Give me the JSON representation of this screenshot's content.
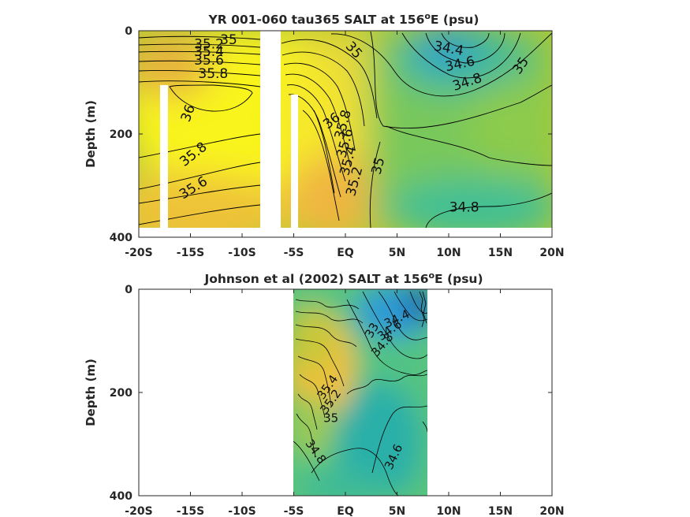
{
  "chart_data": [
    {
      "type": "heatmap",
      "title": "YR 001-060 tau365 SALT at 156",
      "title_sup": "o",
      "title_end": "E (psu)",
      "ylabel": "Depth (m)",
      "xlim": [
        -20,
        20
      ],
      "ylim": [
        0,
        400
      ],
      "y_reversed": true,
      "xtick_values": [
        -20,
        -15,
        -10,
        -5,
        0,
        5,
        10,
        15,
        20
      ],
      "xtick_labels": [
        "-20S",
        "-15S",
        "-10S",
        "-5S",
        "EQ",
        "5N",
        "10N",
        "15N",
        "20N"
      ],
      "ytick_values": [
        0,
        200,
        400
      ],
      "ytick_labels": [
        "0",
        "200",
        "400"
      ],
      "data_extent": {
        "x": [
          -20,
          20
        ],
        "depth": [
          0,
          380
        ]
      },
      "masked_columns": [
        {
          "x": [
            -17.8,
            -17.1
          ],
          "depth": [
            105,
            400
          ]
        },
        {
          "x": [
            -8.1,
            -6.3
          ],
          "depth": [
            0,
            400
          ]
        },
        {
          "x": [
            -5.3,
            -4.7
          ],
          "depth": [
            125,
            400
          ]
        }
      ],
      "contour_labels": [
        {
          "text": "35",
          "x": -11.3,
          "depth": 18
        },
        {
          "text": "35.2",
          "x": -13.2,
          "depth": 27
        },
        {
          "text": "35.4",
          "x": -13.2,
          "depth": 41
        },
        {
          "text": "35.6",
          "x": -13.2,
          "depth": 58
        },
        {
          "text": "35.8",
          "x": -12.8,
          "depth": 84
        },
        {
          "text": "36",
          "x": -15.2,
          "depth": 160,
          "rotate": -70
        },
        {
          "text": "35.8",
          "x": -14.7,
          "depth": 240,
          "rotate": -38
        },
        {
          "text": "35.6",
          "x": -14.7,
          "depth": 305,
          "rotate": -32
        },
        {
          "text": "35",
          "x": 0.8,
          "depth": 38,
          "rotate": 48
        },
        {
          "text": "36",
          "x": -1.3,
          "depth": 175,
          "rotate": -38
        },
        {
          "text": "35.8",
          "x": -0.2,
          "depth": 182,
          "rotate": -75
        },
        {
          "text": "35.6",
          "x": 0.0,
          "depth": 218,
          "rotate": -75
        },
        {
          "text": "35.4",
          "x": 0.3,
          "depth": 252,
          "rotate": -75
        },
        {
          "text": "35.2",
          "x": 0.9,
          "depth": 292,
          "rotate": -75
        },
        {
          "text": "35",
          "x": 3.2,
          "depth": 262,
          "rotate": -75
        },
        {
          "text": "34.4",
          "x": 10.0,
          "depth": 35,
          "rotate": 10
        },
        {
          "text": "34.6",
          "x": 11.1,
          "depth": 65,
          "rotate": -12
        },
        {
          "text": "34.8",
          "x": 11.8,
          "depth": 100,
          "rotate": -18
        },
        {
          "text": "35",
          "x": 17.0,
          "depth": 68,
          "rotate": -55
        },
        {
          "text": "34.8",
          "x": 11.5,
          "depth": 343
        }
      ],
      "colormap": "parula"
    },
    {
      "type": "heatmap",
      "title": "Johnson et al (2002) SALT at 156",
      "title_sup": "o",
      "title_end": "E (psu)",
      "ylabel": "Depth (m)",
      "xlim": [
        -20,
        20
      ],
      "ylim": [
        0,
        400
      ],
      "y_reversed": true,
      "xtick_values": [
        -20,
        -15,
        -10,
        -5,
        0,
        5,
        10,
        15,
        20
      ],
      "xtick_labels": [
        "-20S",
        "-15S",
        "-10S",
        "-5S",
        "EQ",
        "5N",
        "10N",
        "15N",
        "20N"
      ],
      "ytick_values": [
        0,
        200,
        400
      ],
      "ytick_labels": [
        "0",
        "200",
        "400"
      ],
      "data_extent": {
        "x": [
          -5,
          8
        ],
        "depth": [
          0,
          400
        ]
      },
      "contour_labels": [
        {
          "text": "34.4",
          "x": 5.0,
          "depth": 58,
          "rotate": -25
        },
        {
          "text": "34.6",
          "x": 4.3,
          "depth": 80,
          "rotate": -35
        },
        {
          "text": "33",
          "x": 2.6,
          "depth": 80,
          "rotate": -60
        },
        {
          "text": "34.8",
          "x": 3.6,
          "depth": 108,
          "rotate": -50
        },
        {
          "text": "35.4",
          "x": -1.7,
          "depth": 190,
          "rotate": -55
        },
        {
          "text": "35.2",
          "x": -1.4,
          "depth": 218,
          "rotate": -55
        },
        {
          "text": "35",
          "x": -1.4,
          "depth": 250
        },
        {
          "text": "34.8",
          "x": -2.9,
          "depth": 315,
          "rotate": 55
        },
        {
          "text": "34.6",
          "x": 4.7,
          "depth": 325,
          "rotate": -65
        }
      ],
      "colormap": "parula"
    }
  ]
}
